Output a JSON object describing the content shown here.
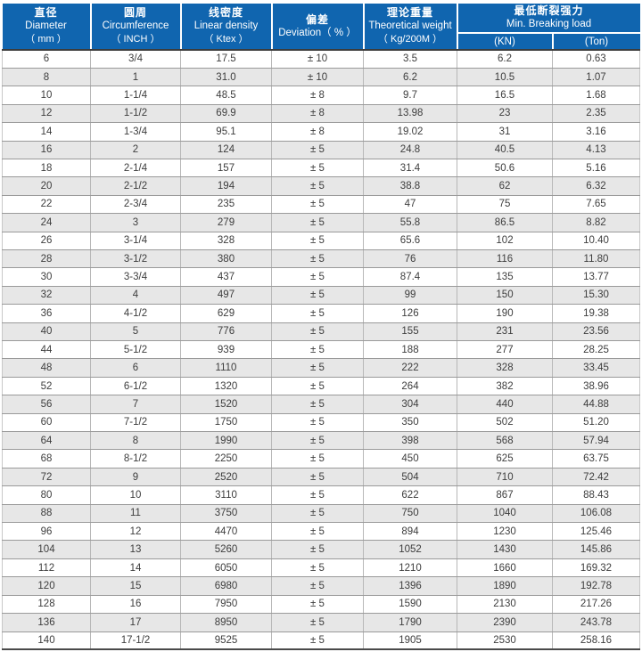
{
  "colors": {
    "header_bg": "#1065af",
    "header_text": "#ffffff",
    "body_text": "#3d3d3d",
    "stripe": "#e7e7e7",
    "grid_h": "#9a9a9a",
    "grid_v": "#b8b8b8",
    "bottom_border": "#4a4a4a"
  },
  "table": {
    "header": {
      "diameter": {
        "zh": "直径",
        "en": "Diameter",
        "unit": "（ mm ）"
      },
      "circumference": {
        "zh": "圆周",
        "en": "Circumference",
        "unit": "（ INCH ）"
      },
      "linear_density": {
        "zh": "线密度",
        "en": "Linear density",
        "unit": "（ Ktex ）"
      },
      "deviation": {
        "zh": "偏差",
        "en": "Deviation（ % ）"
      },
      "theoretical_weight": {
        "zh": "理论重量",
        "en": "Theoretical weight",
        "unit": "（ Kg/200M ）"
      },
      "breaking_load": {
        "zh": "最低断裂强力",
        "en": "Min. Breaking load",
        "sub_kn": "(KN)",
        "sub_ton": "(Ton)"
      }
    },
    "rows": [
      [
        "6",
        "3/4",
        "17.5",
        "± 10",
        "3.5",
        "6.2",
        "0.63"
      ],
      [
        "8",
        "1",
        "31.0",
        "± 10",
        "6.2",
        "10.5",
        "1.07"
      ],
      [
        "10",
        "1-1/4",
        "48.5",
        "± 8",
        "9.7",
        "16.5",
        "1.68"
      ],
      [
        "12",
        "1-1/2",
        "69.9",
        "± 8",
        "13.98",
        "23",
        "2.35"
      ],
      [
        "14",
        "1-3/4",
        "95.1",
        "± 8",
        "19.02",
        "31",
        "3.16"
      ],
      [
        "16",
        "2",
        "124",
        "± 5",
        "24.8",
        "40.5",
        "4.13"
      ],
      [
        "18",
        "2-1/4",
        "157",
        "± 5",
        "31.4",
        "50.6",
        "5.16"
      ],
      [
        "20",
        "2-1/2",
        "194",
        "± 5",
        "38.8",
        "62",
        "6.32"
      ],
      [
        "22",
        "2-3/4",
        "235",
        "± 5",
        "47",
        "75",
        "7.65"
      ],
      [
        "24",
        "3",
        "279",
        "± 5",
        "55.8",
        "86.5",
        "8.82"
      ],
      [
        "26",
        "3-1/4",
        "328",
        "± 5",
        "65.6",
        "102",
        "10.40"
      ],
      [
        "28",
        "3-1/2",
        "380",
        "± 5",
        "76",
        "116",
        "11.80"
      ],
      [
        "30",
        "3-3/4",
        "437",
        "± 5",
        "87.4",
        "135",
        "13.77"
      ],
      [
        "32",
        "4",
        "497",
        "± 5",
        "99",
        "150",
        "15.30"
      ],
      [
        "36",
        "4-1/2",
        "629",
        "± 5",
        "126",
        "190",
        "19.38"
      ],
      [
        "40",
        "5",
        "776",
        "± 5",
        "155",
        "231",
        "23.56"
      ],
      [
        "44",
        "5-1/2",
        "939",
        "± 5",
        "188",
        "277",
        "28.25"
      ],
      [
        "48",
        "6",
        "1110",
        "± 5",
        "222",
        "328",
        "33.45"
      ],
      [
        "52",
        "6-1/2",
        "1320",
        "± 5",
        "264",
        "382",
        "38.96"
      ],
      [
        "56",
        "7",
        "1520",
        "± 5",
        "304",
        "440",
        "44.88"
      ],
      [
        "60",
        "7-1/2",
        "1750",
        "± 5",
        "350",
        "502",
        "51.20"
      ],
      [
        "64",
        "8",
        "1990",
        "± 5",
        "398",
        "568",
        "57.94"
      ],
      [
        "68",
        "8-1/2",
        "2250",
        "± 5",
        "450",
        "625",
        "63.75"
      ],
      [
        "72",
        "9",
        "2520",
        "± 5",
        "504",
        "710",
        "72.42"
      ],
      [
        "80",
        "10",
        "3110",
        "± 5",
        "622",
        "867",
        "88.43"
      ],
      [
        "88",
        "11",
        "3750",
        "± 5",
        "750",
        "1040",
        "106.08"
      ],
      [
        "96",
        "12",
        "4470",
        "± 5",
        "894",
        "1230",
        "125.46"
      ],
      [
        "104",
        "13",
        "5260",
        "± 5",
        "1052",
        "1430",
        "145.86"
      ],
      [
        "112",
        "14",
        "6050",
        "± 5",
        "1210",
        "1660",
        "169.32"
      ],
      [
        "120",
        "15",
        "6980",
        "± 5",
        "1396",
        "1890",
        "192.78"
      ],
      [
        "128",
        "16",
        "7950",
        "± 5",
        "1590",
        "2130",
        "217.26"
      ],
      [
        "136",
        "17",
        "8950",
        "± 5",
        "1790",
        "2390",
        "243.78"
      ],
      [
        "140",
        "17-1/2",
        "9525",
        "± 5",
        "1905",
        "2530",
        "258.16"
      ]
    ]
  }
}
